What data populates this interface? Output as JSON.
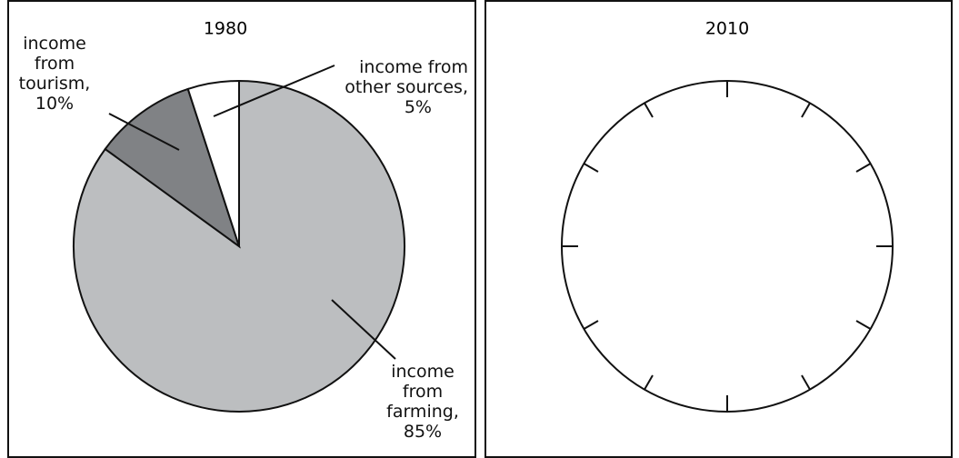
{
  "chart_data": [
    {
      "type": "pie",
      "title": "1980",
      "categories": [
        "income from farming,",
        "income from tourism,",
        "income from other sources,"
      ],
      "values": [
        85,
        10,
        5
      ],
      "value_labels": [
        "85%",
        "10%",
        "5%"
      ],
      "colors": [
        "#bcbec0",
        "#808285",
        "#ffffff"
      ]
    },
    {
      "type": "pie",
      "title": "2010",
      "ticks": 12
    }
  ]
}
